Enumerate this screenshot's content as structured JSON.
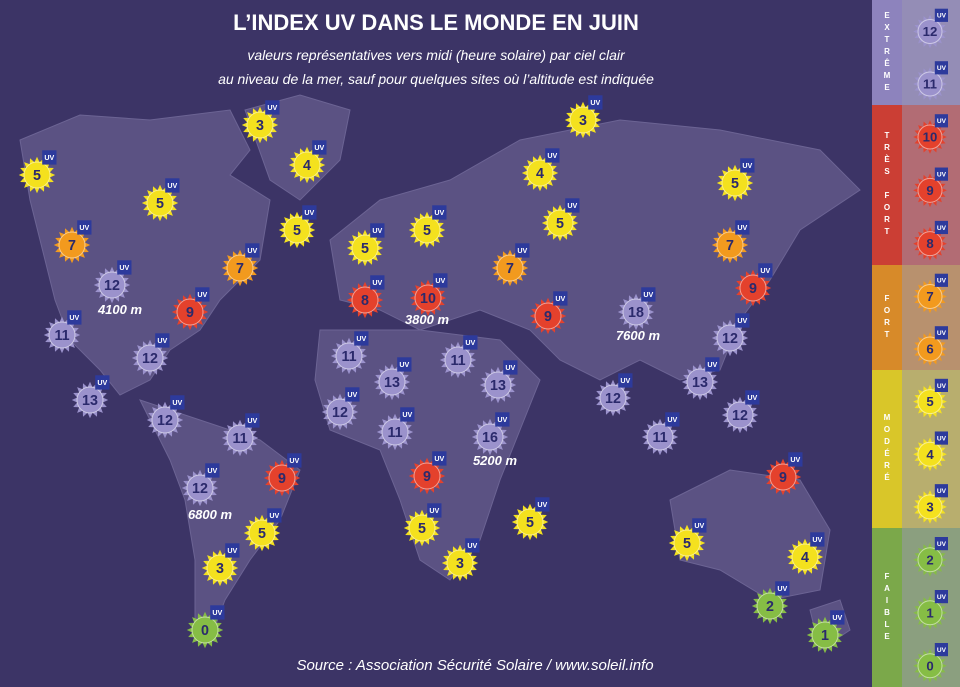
{
  "header": {
    "title": "L’INDEX UV DANS LE MONDE EN JUIN",
    "subtitle_lines": [
      "valeurs représentatives vers midi (heure solaire) par ciel clair",
      "au niveau de la mer, sauf pour quelques sites où l’altitude est indiquée"
    ]
  },
  "uv_label": "UV",
  "markers": [
    5,
    3,
    4,
    5,
    7,
    5,
    7,
    12,
    9,
    11,
    12,
    13,
    12,
    11,
    9,
    12,
    5,
    3,
    0,
    5,
    5,
    8,
    10,
    11,
    13,
    11,
    12,
    11,
    9,
    13,
    16,
    5,
    3,
    5,
    3,
    4,
    5,
    7,
    9,
    18,
    5,
    7,
    9,
    12,
    13,
    12,
    11,
    12,
    9,
    5,
    4,
    2,
    1
  ],
  "altitudes": [
    "4100 m",
    "3800 m",
    "7600 m",
    "5200 m",
    "6800 m"
  ],
  "legend": [
    {
      "label": "EXTRÊME",
      "values": [
        12,
        11
      ],
      "color": "#9b92cc"
    },
    {
      "label": "TRÈS FORT",
      "values": [
        10,
        9,
        8
      ],
      "color": "#e4412c"
    },
    {
      "label": "FORT",
      "values": [
        7,
        6
      ],
      "color": "#f29a1e"
    },
    {
      "label": "MODÉRÉ",
      "values": [
        5,
        4,
        3
      ],
      "color": "#f4e11e"
    },
    {
      "label": "FAIBLE",
      "values": [
        2,
        1,
        0
      ],
      "color": "#86bd45"
    }
  ],
  "source": "Source : Association Sécurité Solaire / www.soleil.info"
}
